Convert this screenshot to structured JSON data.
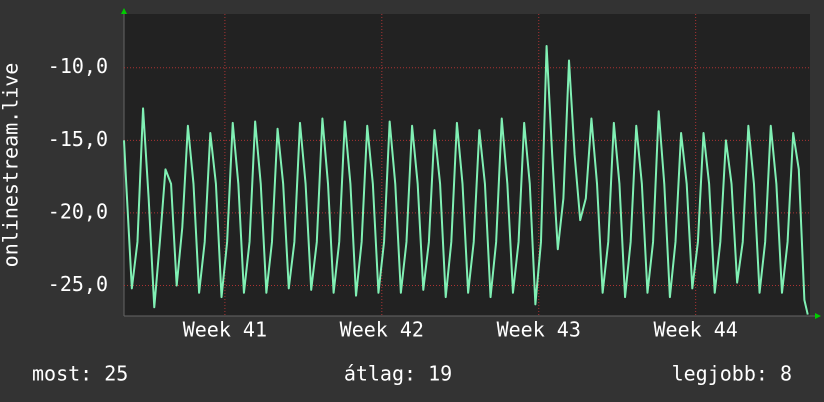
{
  "chart_data": {
    "type": "line",
    "ylabel": "onlinestream.live",
    "xlim": [
      0,
      30.6
    ],
    "ylim": [
      -27.1,
      -6.3
    ],
    "xticks": [
      {
        "value": 4.5,
        "label": "Week 41"
      },
      {
        "value": 11.5,
        "label": "Week 42"
      },
      {
        "value": 18.5,
        "label": "Week 43"
      },
      {
        "value": 25.5,
        "label": "Week 44"
      }
    ],
    "yticks": [
      {
        "value": -25,
        "label": "-25,0"
      },
      {
        "value": -20,
        "label": "-20,0"
      },
      {
        "value": -15,
        "label": "-15,0"
      },
      {
        "value": -10,
        "label": "-10,0"
      }
    ],
    "grid": true,
    "series": [
      {
        "color": "#80f0b4",
        "x": [
          0,
          0.1,
          0.35,
          0.6,
          0.85,
          1.1,
          1.35,
          1.6,
          1.85,
          2.1,
          2.35,
          2.6,
          2.85,
          3.1,
          3.35,
          3.6,
          3.85,
          4.1,
          4.35,
          4.6,
          4.85,
          5.1,
          5.35,
          5.6,
          5.85,
          6.1,
          6.35,
          6.6,
          6.85,
          7.1,
          7.35,
          7.6,
          7.85,
          8.1,
          8.35,
          8.6,
          8.85,
          9.1,
          9.35,
          9.6,
          9.85,
          10.1,
          10.35,
          10.6,
          10.85,
          11.1,
          11.35,
          11.6,
          11.85,
          12.1,
          12.35,
          12.6,
          12.85,
          13.1,
          13.35,
          13.6,
          13.85,
          14.1,
          14.35,
          14.6,
          14.85,
          15.1,
          15.35,
          15.6,
          15.85,
          16.1,
          16.35,
          16.6,
          16.85,
          17.1,
          17.35,
          17.6,
          17.85,
          18.1,
          18.35,
          18.6,
          18.85,
          19.1,
          19.35,
          19.6,
          19.85,
          20.1,
          20.35,
          20.6,
          20.85,
          21.1,
          21.35,
          21.6,
          21.85,
          22.1,
          22.35,
          22.6,
          22.85,
          23.1,
          23.35,
          23.6,
          23.85,
          24.1,
          24.35,
          24.6,
          24.85,
          25.1,
          25.35,
          25.6,
          25.85,
          26.1,
          26.35,
          26.6,
          26.85,
          27.1,
          27.35,
          27.6,
          27.85,
          28.1,
          28.35,
          28.6,
          28.85,
          29.1,
          29.35,
          29.6,
          29.85,
          30.1,
          30.35,
          30.5
        ],
        "values": [
          -15,
          -18,
          -25.2,
          -22,
          -12.8,
          -19,
          -26.5,
          -22,
          -17,
          -18,
          -25,
          -21,
          -14,
          -18,
          -25.5,
          -22,
          -14.5,
          -18,
          -25.8,
          -22,
          -13.8,
          -18,
          -25.5,
          -22,
          -13.7,
          -18,
          -25.5,
          -22,
          -14.2,
          -18,
          -25.2,
          -22,
          -13.8,
          -18,
          -25.3,
          -22,
          -13.5,
          -18,
          -25.5,
          -22,
          -13.7,
          -18,
          -25.7,
          -22,
          -14,
          -18,
          -25.5,
          -22,
          -13.7,
          -18,
          -25.5,
          -22,
          -14,
          -18,
          -25.3,
          -22,
          -14.3,
          -18,
          -25.8,
          -22,
          -13.8,
          -18,
          -25.5,
          -22,
          -14.3,
          -18,
          -25.8,
          -22,
          -13.5,
          -18,
          -25.5,
          -22,
          -13.8,
          -18,
          -26.3,
          -22,
          -8.5,
          -16,
          -22.5,
          -19,
          -9.5,
          -16,
          -20.5,
          -19,
          -13.5,
          -18,
          -25.5,
          -22,
          -13.8,
          -18,
          -25.8,
          -22,
          -14,
          -18,
          -25.5,
          -22,
          -13,
          -18,
          -25.8,
          -22,
          -14.5,
          -18,
          -25.2,
          -22,
          -14.5,
          -18,
          -25.5,
          -22,
          -15,
          -18,
          -24.8,
          -22,
          -14,
          -18,
          -25.5,
          -22,
          -14,
          -18,
          -25.5,
          -22,
          -14.5,
          -17,
          -26,
          -27
        ]
      }
    ],
    "footer": {
      "current": "most: 25",
      "average": "átlag: 19",
      "best": "legjobb: 8"
    }
  }
}
